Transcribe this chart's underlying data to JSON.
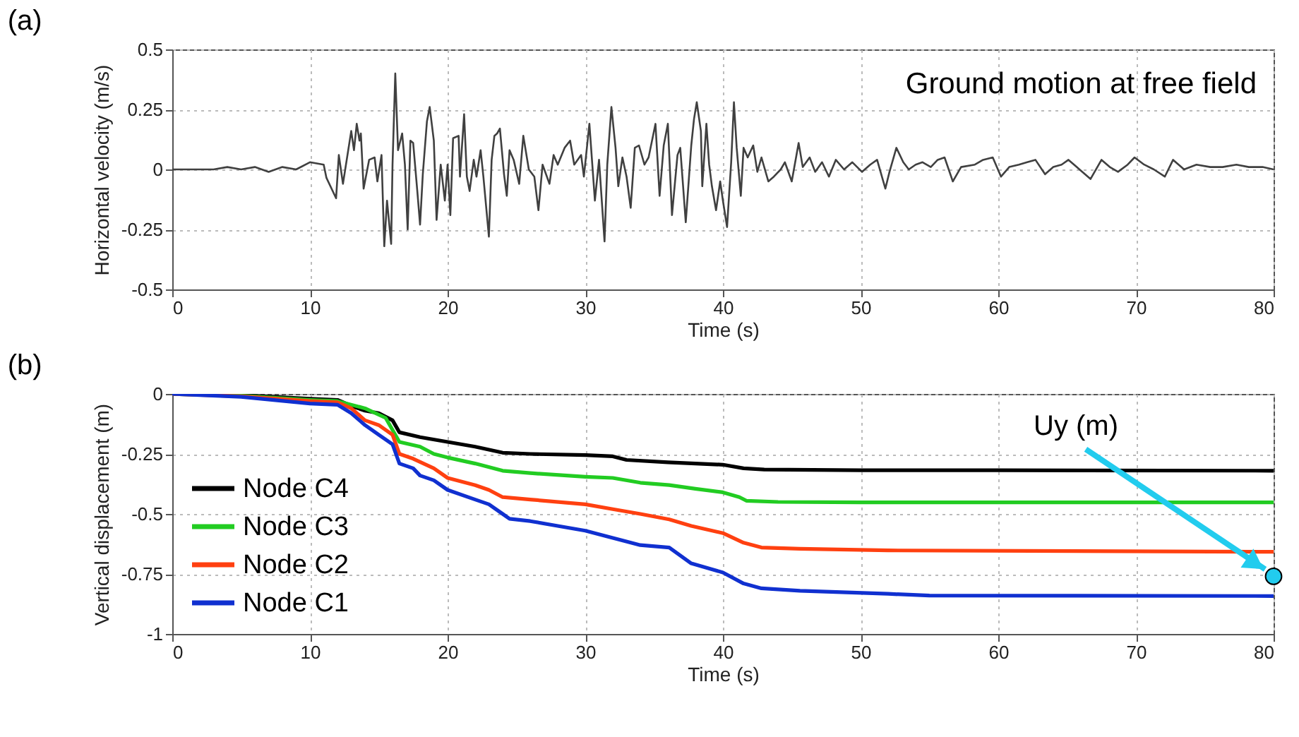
{
  "chart_data": [
    {
      "type": "line",
      "title": "(a)",
      "xlabel": "Time (s)",
      "ylabel": "Horizontal velocity (m/s)",
      "annotations": [
        "Ground motion at free field"
      ],
      "xlim": [
        0,
        80
      ],
      "xticks": [
        0,
        10,
        20,
        30,
        40,
        50,
        60,
        70,
        80
      ],
      "ylim": [
        -0.5,
        0.5
      ],
      "yticks": [
        -0.5,
        -0.25,
        0,
        0.25,
        0.5
      ],
      "grid": true,
      "marker": "none",
      "line_style": "solid",
      "series": [
        {
          "color": "#404040",
          "x": [
            0,
            3,
            4,
            5,
            6,
            7,
            8,
            9,
            10,
            11,
            11.2,
            11.9,
            12.1,
            12.4,
            13.0,
            13.2,
            13.4,
            13.6,
            13.7,
            13.9,
            14.3,
            14.7,
            14.9,
            15.2,
            15.4,
            15.6,
            15.9,
            16.0,
            16.2,
            16.4,
            16.7,
            16.9,
            17.1,
            17.3,
            17.5,
            17.8,
            18.0,
            18.2,
            18.5,
            18.7,
            19.0,
            19.2,
            19.5,
            19.8,
            20.0,
            20.2,
            20.4,
            20.8,
            20.9,
            21.2,
            21.4,
            21.6,
            21.9,
            22.1,
            22.4,
            22.6,
            23.0,
            23.2,
            23.4,
            23.6,
            23.8,
            24.1,
            24.3,
            24.5,
            24.8,
            25.2,
            25.5,
            25.9,
            26.3,
            26.6,
            26.9,
            27.4,
            27.7,
            28.0,
            28.5,
            28.9,
            29.2,
            29.7,
            29.9,
            30.3,
            30.7,
            31.0,
            31.4,
            31.6,
            31.9,
            32.2,
            32.4,
            32.7,
            33.0,
            33.3,
            33.6,
            33.9,
            34.3,
            34.6,
            35.1,
            35.4,
            35.7,
            36.0,
            36.3,
            36.7,
            36.9,
            37.3,
            37.7,
            37.9,
            38.1,
            38.4,
            38.5,
            38.8,
            39.0,
            39.2,
            39.5,
            39.8,
            40.0,
            40.3,
            40.6,
            40.8,
            41.0,
            41.3,
            41.5,
            41.8,
            42.2,
            42.5,
            42.8,
            43.3,
            43.7,
            44.2,
            44.5,
            45.0,
            45.5,
            45.8,
            46.3,
            46.7,
            47.2,
            47.7,
            48.2,
            48.8,
            49.4,
            50.1,
            50.7,
            51.2,
            51.8,
            52.1,
            52.6,
            53.1,
            53.5,
            54.0,
            54.5,
            55.1,
            55.6,
            56.1,
            56.7,
            57.3,
            58.3,
            58.9,
            59.6,
            60.2,
            60.8,
            61.5,
            62.1,
            62.7,
            63.4,
            64.0,
            64.6,
            65.1,
            65.9,
            66.7,
            67.5,
            68.1,
            68.7,
            69.4,
            69.9,
            70.6,
            71.3,
            72.1,
            72.7,
            73.5,
            74.4,
            75.4,
            76.3,
            77.3,
            78.2,
            79.2,
            80.0
          ],
          "values": [
            0,
            0,
            0.01,
            0,
            0.01,
            -0.01,
            0.01,
            0,
            0.03,
            0.02,
            -0.035,
            -0.12,
            0.06,
            -0.06,
            0.16,
            0.08,
            0.19,
            0.12,
            0.15,
            -0.08,
            0.04,
            0.05,
            -0.05,
            0.06,
            -0.32,
            -0.13,
            -0.31,
            0.02,
            0.4,
            0.08,
            0.15,
            0.02,
            -0.25,
            0.12,
            0.11,
            -0.09,
            -0.23,
            -0.02,
            0.2,
            0.26,
            0.12,
            -0.21,
            0.02,
            -0.13,
            0.02,
            -0.19,
            0.13,
            0.14,
            -0.03,
            0.23,
            -0.03,
            -0.09,
            0.04,
            -0.03,
            0.08,
            -0.03,
            -0.28,
            0.04,
            0.14,
            0.15,
            0.17,
            -0.02,
            -0.11,
            0.08,
            0.04,
            -0.06,
            0.14,
            0,
            -0.03,
            -0.17,
            0.02,
            -0.06,
            0.06,
            0.02,
            0.09,
            0.12,
            0.02,
            0.06,
            -0.03,
            0.19,
            -0.13,
            0.04,
            -0.3,
            0.02,
            0.26,
            0.09,
            -0.07,
            0.05,
            -0.03,
            -0.16,
            0.09,
            0.1,
            0.02,
            0.05,
            0.19,
            -0.11,
            0.1,
            0.19,
            -0.19,
            0.06,
            0.09,
            -0.22,
            0.1,
            0.21,
            0.28,
            0.16,
            -0.07,
            0.19,
            0.02,
            -0.07,
            -0.17,
            -0.05,
            -0.13,
            -0.24,
            0.03,
            0.28,
            0.09,
            -0.11,
            0.09,
            0.05,
            0.1,
            -0.01,
            0.05,
            -0.05,
            -0.03,
            0,
            0.03,
            -0.05,
            0.11,
            0.01,
            0.05,
            -0.01,
            0.03,
            -0.03,
            0.04,
            0,
            0.03,
            -0.01,
            0.02,
            0.04,
            -0.08,
            -0.01,
            0.09,
            0.03,
            0,
            0.02,
            0.03,
            0.01,
            0.04,
            0.05,
            -0.05,
            0.01,
            0.02,
            0.04,
            0.05,
            -0.03,
            0.01,
            0.02,
            0.03,
            0.04,
            -0.02,
            0.01,
            0.02,
            0.04,
            0,
            -0.04,
            0.04,
            0.01,
            -0.01,
            0.02,
            0.05,
            0.02,
            0,
            -0.03,
            0.04,
            0,
            0.02,
            0.01,
            0.01,
            0.02,
            0.01,
            0.01,
            0
          ]
        }
      ]
    },
    {
      "type": "line",
      "title": "(b)",
      "xlabel": "Time (s)",
      "ylabel": "Vertical displacement (m)",
      "annotations": [
        {
          "text": "Uy (m)",
          "x": 80,
          "y": -0.76
        }
      ],
      "xlim": [
        0,
        80
      ],
      "xticks": [
        0,
        10,
        20,
        30,
        40,
        50,
        60,
        70,
        80
      ],
      "ylim": [
        -1,
        0
      ],
      "yticks": [
        -1,
        -0.75,
        -0.5,
        -0.25,
        0
      ],
      "grid": true,
      "legend": "bottom left",
      "marker": "none",
      "line_style": "solid",
      "series": [
        {
          "name": "Node C4",
          "color": "#000000",
          "x": [
            0,
            5,
            10,
            12,
            13,
            14,
            15,
            16,
            16.5,
            18,
            20,
            22,
            24,
            26,
            30,
            32,
            33,
            36,
            38,
            40,
            41.5,
            43,
            50,
            60,
            80
          ],
          "values": [
            0,
            -0.005,
            -0.02,
            -0.025,
            -0.05,
            -0.07,
            -0.08,
            -0.11,
            -0.16,
            -0.18,
            -0.2,
            -0.22,
            -0.245,
            -0.25,
            -0.255,
            -0.26,
            -0.275,
            -0.285,
            -0.29,
            -0.295,
            -0.31,
            -0.315,
            -0.318,
            -0.318,
            -0.32
          ]
        },
        {
          "name": "Node C3",
          "color": "#22cc22",
          "x": [
            0,
            5,
            10,
            12,
            14,
            15.5,
            16.5,
            18,
            19,
            20,
            22,
            24,
            26,
            30,
            32,
            34,
            36.1,
            38,
            40,
            41.2,
            41.7,
            44,
            50,
            80
          ],
          "values": [
            0,
            -0.008,
            -0.025,
            -0.03,
            -0.06,
            -0.1,
            -0.2,
            -0.22,
            -0.25,
            -0.265,
            -0.29,
            -0.32,
            -0.33,
            -0.345,
            -0.35,
            -0.37,
            -0.38,
            -0.395,
            -0.41,
            -0.43,
            -0.445,
            -0.45,
            -0.452,
            -0.452
          ]
        },
        {
          "name": "Node C2",
          "color": "#ff4010",
          "x": [
            0,
            5,
            10,
            12,
            13,
            14,
            15,
            16,
            16.5,
            17.5,
            19,
            20,
            22,
            23,
            24,
            26,
            30,
            32,
            34,
            36.1,
            37.7,
            40,
            41.5,
            42.8,
            45.6,
            52,
            80
          ],
          "values": [
            0,
            -0.01,
            -0.03,
            -0.035,
            -0.06,
            -0.11,
            -0.13,
            -0.17,
            -0.25,
            -0.27,
            -0.31,
            -0.35,
            -0.38,
            -0.4,
            -0.43,
            -0.44,
            -0.46,
            -0.48,
            -0.5,
            -0.523,
            -0.55,
            -0.58,
            -0.62,
            -0.64,
            -0.645,
            -0.652,
            -0.658
          ]
        },
        {
          "name": "Node C1",
          "color": "#1030d0",
          "x": [
            0,
            5,
            10,
            12,
            13,
            14,
            15,
            16,
            16.5,
            17.5,
            18,
            19,
            20,
            22,
            23,
            24,
            24.5,
            26,
            28,
            30,
            32,
            34,
            36.1,
            37.7,
            40,
            41.5,
            42.8,
            45.6,
            52,
            55,
            80
          ],
          "values": [
            0,
            -0.012,
            -0.04,
            -0.045,
            -0.08,
            -0.13,
            -0.17,
            -0.21,
            -0.29,
            -0.31,
            -0.34,
            -0.36,
            -0.4,
            -0.44,
            -0.46,
            -0.5,
            -0.52,
            -0.53,
            -0.55,
            -0.57,
            -0.6,
            -0.63,
            -0.64,
            -0.706,
            -0.744,
            -0.79,
            -0.81,
            -0.82,
            -0.833,
            -0.84,
            -0.842
          ]
        }
      ]
    }
  ]
}
